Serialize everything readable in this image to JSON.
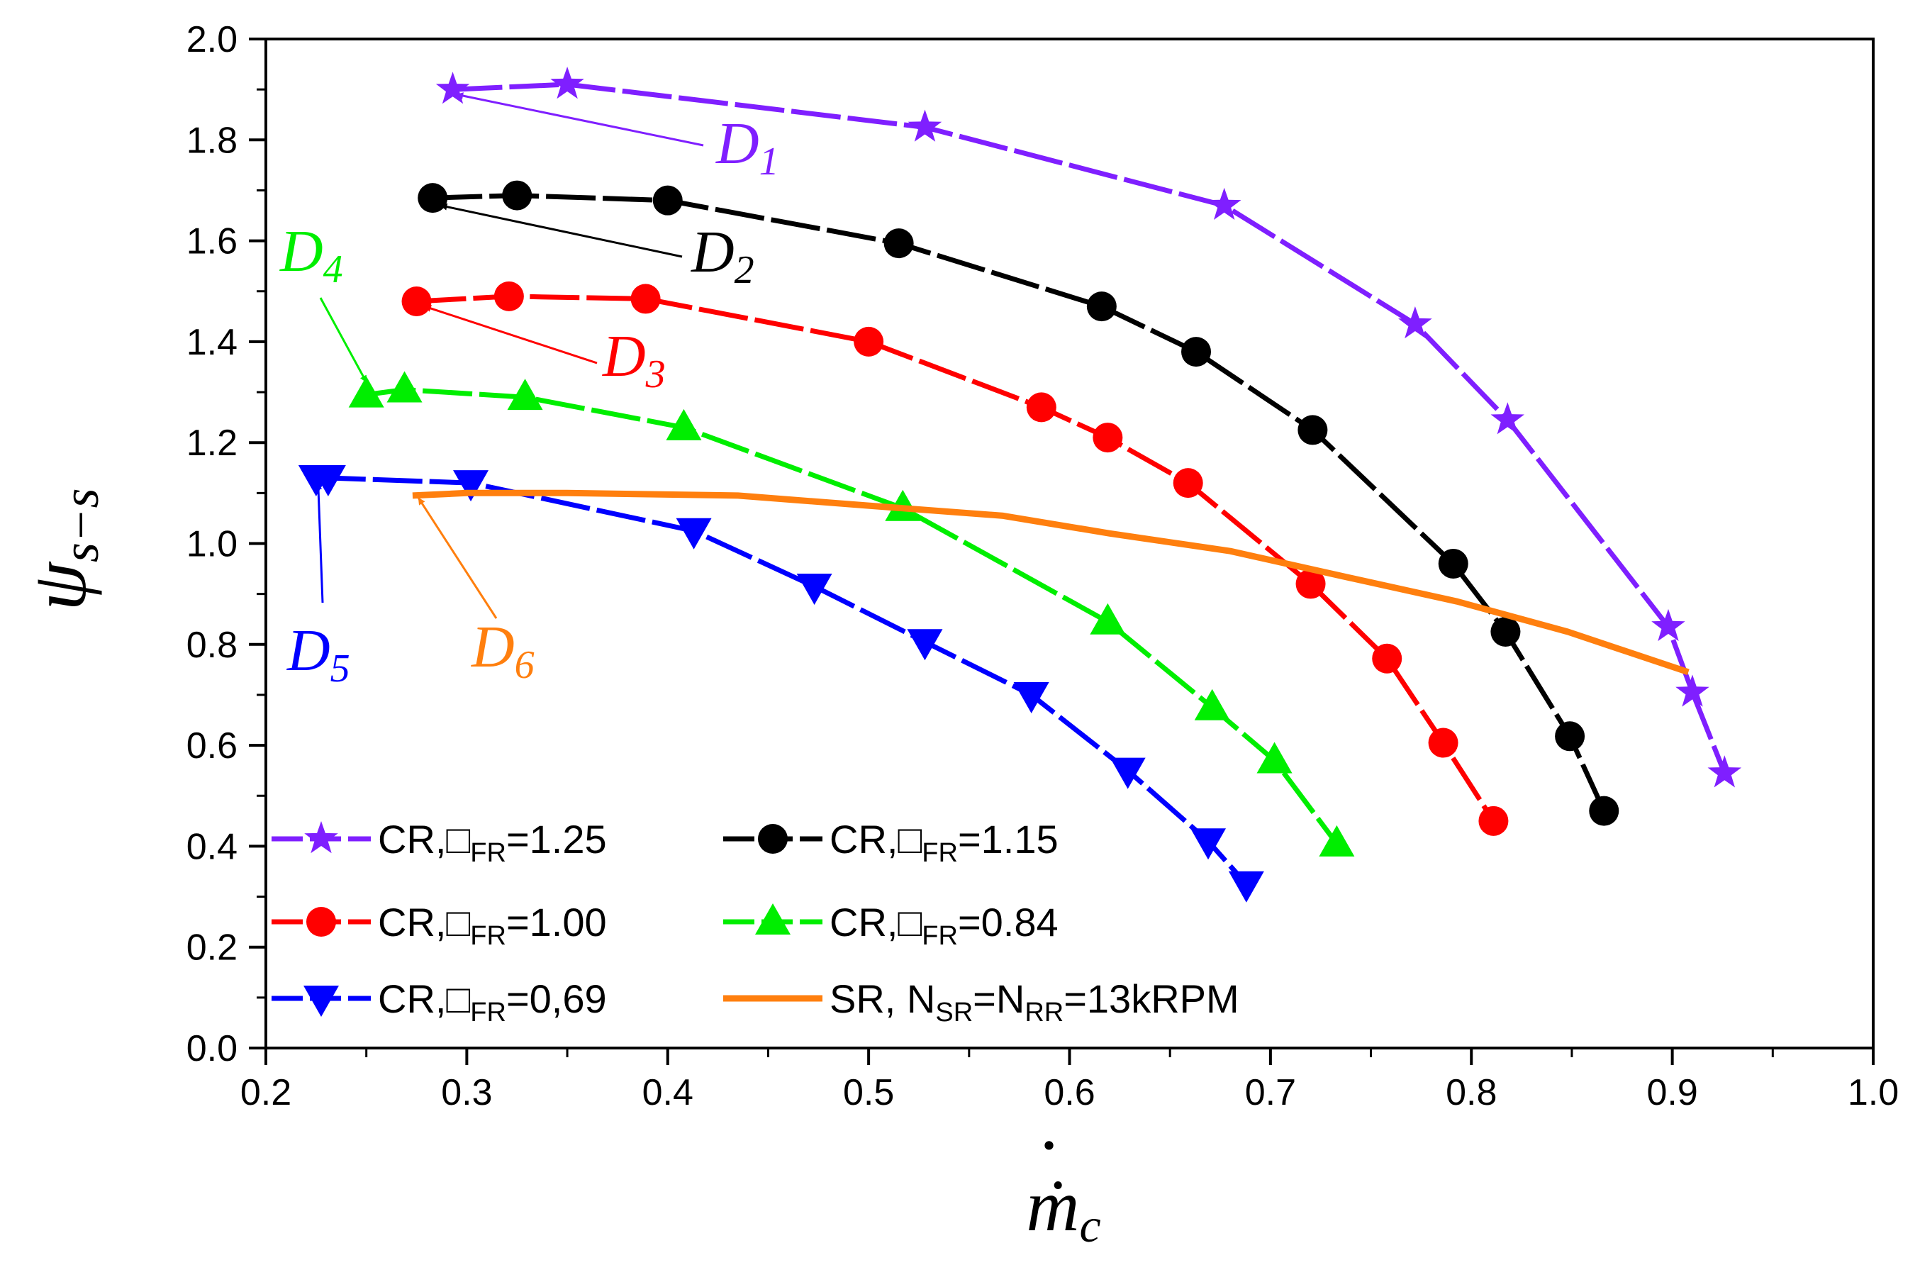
{
  "chart_data": {
    "type": "line",
    "xlabel": "ṁ",
    "xlabel_sub": "c",
    "ylabel": "ψ",
    "ylabel_sub": "s−s",
    "xlim": [
      0.2,
      1.0
    ],
    "ylim": [
      0.0,
      2.0
    ],
    "x_ticks": [
      "0.2",
      "0.3",
      "0.4",
      "0.5",
      "0.6",
      "0.7",
      "0.8",
      "0.9",
      "1.0"
    ],
    "y_ticks": [
      "0.0",
      "0.2",
      "0.4",
      "0.6",
      "0.8",
      "1.0",
      "1.2",
      "1.4",
      "1.6",
      "1.8",
      "2.0"
    ],
    "grid": false,
    "series": [
      {
        "name": "CR,□FR=1.25",
        "legend_main": "CR,",
        "legend_sym": "□",
        "legend_sub": "FR",
        "legend_val": "=1.25",
        "color": "#7f1fff",
        "marker": "star",
        "dashed": true,
        "x": [
          0.293,
          0.35,
          0.528,
          0.677,
          0.772,
          0.818,
          0.898,
          0.91,
          0.926
        ],
        "y": [
          1.9,
          1.91,
          1.825,
          1.67,
          1.435,
          1.245,
          0.835,
          0.705,
          0.545
        ]
      },
      {
        "name": "CR,□FR=1.15",
        "legend_main": "CR,",
        "legend_sym": "□",
        "legend_sub": "FR",
        "legend_val": "=1.15",
        "color": "#000000",
        "marker": "circle",
        "dashed": true,
        "x": [
          0.283,
          0.325,
          0.4,
          0.515,
          0.616,
          0.663,
          0.721,
          0.791,
          0.817,
          0.849,
          0.866
        ],
        "y": [
          1.685,
          1.69,
          1.68,
          1.595,
          1.47,
          1.38,
          1.225,
          0.96,
          0.825,
          0.618,
          0.47
        ]
      },
      {
        "name": "CR,□FR=1.00",
        "legend_main": "CR,",
        "legend_sym": "□",
        "legend_sub": "FR",
        "legend_val": "=1.00",
        "color": "#ff0000",
        "marker": "circle",
        "dashed": true,
        "x": [
          0.275,
          0.321,
          0.389,
          0.5,
          0.586,
          0.619,
          0.659,
          0.72,
          0.758,
          0.786,
          0.811
        ],
        "y": [
          1.48,
          1.49,
          1.485,
          1.4,
          1.27,
          1.21,
          1.12,
          0.92,
          0.772,
          0.605,
          0.45
        ]
      },
      {
        "name": "CR,□FR=0.84",
        "legend_main": "CR,",
        "legend_sym": "□",
        "legend_sub": "FR",
        "legend_val": "=0.84",
        "color": "#00ee00",
        "marker": "triangle-up",
        "dashed": true,
        "x": [
          0.25,
          0.269,
          0.329,
          0.408,
          0.517,
          0.619,
          0.671,
          0.702,
          0.733
        ],
        "y": [
          1.295,
          1.305,
          1.29,
          1.23,
          1.07,
          0.845,
          0.675,
          0.57,
          0.405
        ]
      },
      {
        "name": "CR,□FR=0,69",
        "legend_main": "CR,",
        "legend_sym": "□",
        "legend_sub": "FR",
        "legend_val": "=0,69",
        "color": "#0000ff",
        "marker": "triangle-down",
        "dashed": true,
        "x": [
          0.225,
          0.231,
          0.302,
          0.413,
          0.473,
          0.528,
          0.581,
          0.629,
          0.669,
          0.688
        ],
        "y": [
          1.13,
          1.13,
          1.12,
          1.025,
          0.915,
          0.805,
          0.7,
          0.55,
          0.41,
          0.325
        ]
      },
      {
        "name": "SR, NSR=NRR=13kRPM",
        "legend_parts": [
          "SR, N",
          "SR",
          "=N",
          "RR",
          "=13kRPM"
        ],
        "color": "#ff7f0e",
        "marker": "none",
        "dashed": false,
        "x": [
          0.273,
          0.3,
          0.35,
          0.435,
          0.5,
          0.567,
          0.62,
          0.68,
          0.736,
          0.793,
          0.848,
          0.908
        ],
        "y": [
          1.095,
          1.1,
          1.1,
          1.095,
          1.075,
          1.055,
          1.02,
          0.985,
          0.935,
          0.885,
          0.825,
          0.745
        ]
      }
    ],
    "annotations": [
      {
        "label": "D",
        "sub": "1",
        "color": "#7f1fff",
        "arrow_to_x": 0.295,
        "arrow_to_y": 1.89
      },
      {
        "label": "D",
        "sub": "2",
        "color": "#000000",
        "arrow_to_x": 0.287,
        "arrow_to_y": 1.67
      },
      {
        "label": "D",
        "sub": "3",
        "color": "#ff0000",
        "arrow_to_x": 0.279,
        "arrow_to_y": 1.47
      },
      {
        "label": "D",
        "sub": "4",
        "color": "#00ee00",
        "arrow_to_x": 0.25,
        "arrow_to_y": 1.32
      },
      {
        "label": "D",
        "sub": "5",
        "color": "#0000ff",
        "arrow_to_x": 0.226,
        "arrow_to_y": 1.12
      },
      {
        "label": "D",
        "sub": "6",
        "color": "#ff7f0e",
        "arrow_to_x": 0.276,
        "arrow_to_y": 1.09
      }
    ]
  }
}
